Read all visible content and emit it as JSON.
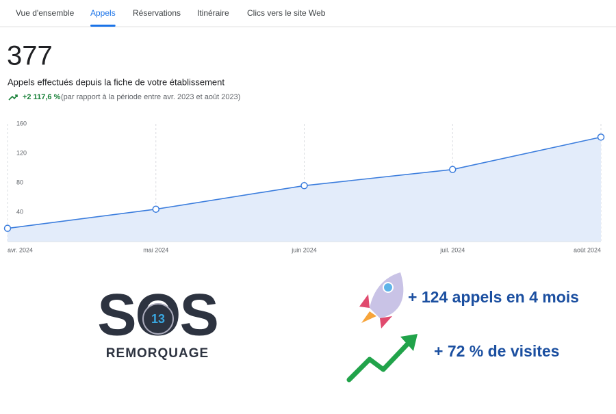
{
  "tabs": [
    "Vue d'ensemble",
    "Appels",
    "Réservations",
    "Itinéraire",
    "Clics vers le site Web"
  ],
  "active_tab": 1,
  "headline": {
    "value": "377",
    "caption": "Appels effectués depuis la fiche de votre établissement",
    "change": "+2 117,6 %",
    "comparison": "(par rapport à la période entre avr. 2023 et août 2023)"
  },
  "chart_data": {
    "type": "area",
    "categories": [
      "avr. 2024",
      "mai 2024",
      "juin 2024",
      "juil. 2024",
      "août 2024"
    ],
    "values": [
      18,
      44,
      76,
      98,
      142
    ],
    "color": "#3b7ddd",
    "fill": "#e3ecfa",
    "ylim": [
      0,
      160
    ],
    "yticks": [
      40,
      80,
      120,
      160
    ],
    "grid": true
  },
  "logo": {
    "main": "SOS",
    "number": "13",
    "sub": "REMORQUAGE"
  },
  "promo": [
    "+ 124 appels en 4 mois",
    "+ 72 % de visites"
  ]
}
